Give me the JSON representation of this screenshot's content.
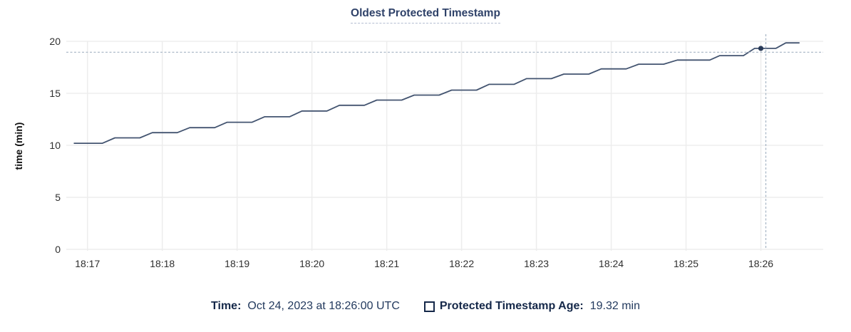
{
  "title": "Oldest Protected Timestamp",
  "colors": {
    "line": "#435470",
    "hover_dot": "#293a58",
    "crosshair": "#a5b4c4",
    "grid": "#ededed",
    "axis_tick_text": "#2f2f2f",
    "axis_label_text": "#111111",
    "title_text": "#2f4269",
    "title_underline": "#b3bdd1",
    "legend_label_text": "#152849",
    "legend_value_text": "#233a5e"
  },
  "chart_data": {
    "type": "line",
    "title": "Oldest Protected Timestamp",
    "ylabel": "time (min)",
    "ylim": [
      0,
      20
    ],
    "yticks": [
      0,
      5,
      10,
      15,
      20
    ],
    "grid": true,
    "x_domain_sec": [
      1003,
      1610
    ],
    "xticks": [
      {
        "sec": 1020,
        "label": "18:17"
      },
      {
        "sec": 1080,
        "label": "18:18"
      },
      {
        "sec": 1140,
        "label": "18:19"
      },
      {
        "sec": 1200,
        "label": "18:20"
      },
      {
        "sec": 1260,
        "label": "18:21"
      },
      {
        "sec": 1320,
        "label": "18:22"
      },
      {
        "sec": 1380,
        "label": "18:23"
      },
      {
        "sec": 1440,
        "label": "18:24"
      },
      {
        "sec": 1500,
        "label": "18:25"
      },
      {
        "sec": 1560,
        "label": "18:26"
      }
    ],
    "series": [
      {
        "name": "Protected Timestamp Age",
        "unit": "min",
        "points": [
          [
            1009,
            10.2
          ],
          [
            1032,
            10.2
          ],
          [
            1042,
            10.72
          ],
          [
            1062,
            10.72
          ],
          [
            1072,
            11.22
          ],
          [
            1092,
            11.22
          ],
          [
            1102,
            11.7
          ],
          [
            1122,
            11.7
          ],
          [
            1132,
            12.22
          ],
          [
            1152,
            12.22
          ],
          [
            1162,
            12.75
          ],
          [
            1182,
            12.75
          ],
          [
            1192,
            13.3
          ],
          [
            1212,
            13.3
          ],
          [
            1222,
            13.85
          ],
          [
            1242,
            13.85
          ],
          [
            1252,
            14.35
          ],
          [
            1272,
            14.35
          ],
          [
            1282,
            14.83
          ],
          [
            1302,
            14.83
          ],
          [
            1312,
            15.31
          ],
          [
            1332,
            15.31
          ],
          [
            1342,
            15.86
          ],
          [
            1362,
            15.86
          ],
          [
            1372,
            16.41
          ],
          [
            1392,
            16.41
          ],
          [
            1402,
            16.85
          ],
          [
            1422,
            16.85
          ],
          [
            1432,
            17.35
          ],
          [
            1452,
            17.35
          ],
          [
            1462,
            17.8
          ],
          [
            1482,
            17.8
          ],
          [
            1493,
            18.2
          ],
          [
            1519,
            18.2
          ],
          [
            1527,
            18.62
          ],
          [
            1546,
            18.62
          ],
          [
            1555,
            19.32
          ],
          [
            1572,
            19.32
          ],
          [
            1580,
            19.85
          ],
          [
            1591,
            19.85
          ]
        ]
      }
    ],
    "hover": {
      "crosshair_time_sec": 1564,
      "crosshair_value": 18.95,
      "snapped_point": {
        "time_sec": 1560,
        "value": 19.32
      }
    }
  },
  "legend": {
    "time_label": "Time:",
    "time_value": "Oct 24, 2023 at 18:26:00 UTC",
    "series_label": "Protected Timestamp Age:",
    "series_value": "19.32 min"
  }
}
